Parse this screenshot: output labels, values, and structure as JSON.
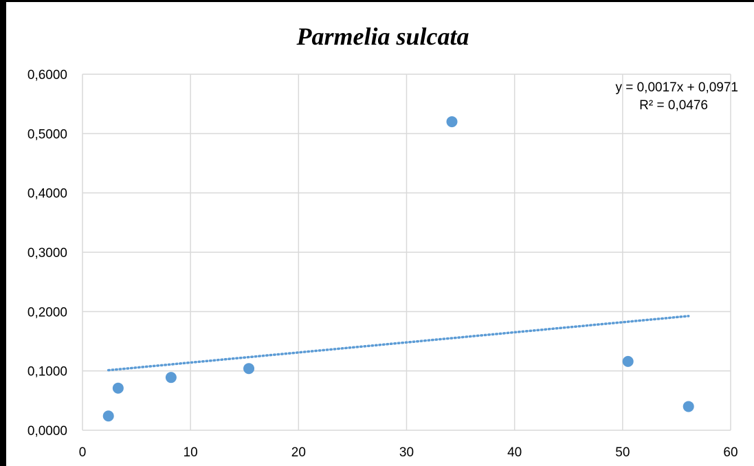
{
  "chart_data": {
    "type": "scatter",
    "title": "Parmelia sulcata",
    "xlabel": "",
    "ylabel": "",
    "xlim": [
      0,
      60
    ],
    "ylim": [
      0,
      0.6
    ],
    "x_ticks": [
      "0",
      "10",
      "20",
      "30",
      "40",
      "50",
      "60"
    ],
    "y_ticks": [
      "0,0000",
      "0,1000",
      "0,2000",
      "0,3000",
      "0,4000",
      "0,5000",
      "0,6000"
    ],
    "grid": true,
    "marker_color": "#5b9bd5",
    "trendline_color": "#5b9bd5",
    "points": [
      {
        "x": 2.4,
        "y": 0.024
      },
      {
        "x": 3.3,
        "y": 0.071
      },
      {
        "x": 8.2,
        "y": 0.089
      },
      {
        "x": 15.4,
        "y": 0.104
      },
      {
        "x": 34.2,
        "y": 0.52
      },
      {
        "x": 50.5,
        "y": 0.116
      },
      {
        "x": 56.1,
        "y": 0.04
      }
    ],
    "trendline": {
      "slope": 0.0017,
      "intercept": 0.0971,
      "x_range": [
        2.4,
        56.1
      ],
      "equation_label": "y = 0,0017x + 0,0971",
      "r2_label": "R² = 0,0476"
    }
  }
}
